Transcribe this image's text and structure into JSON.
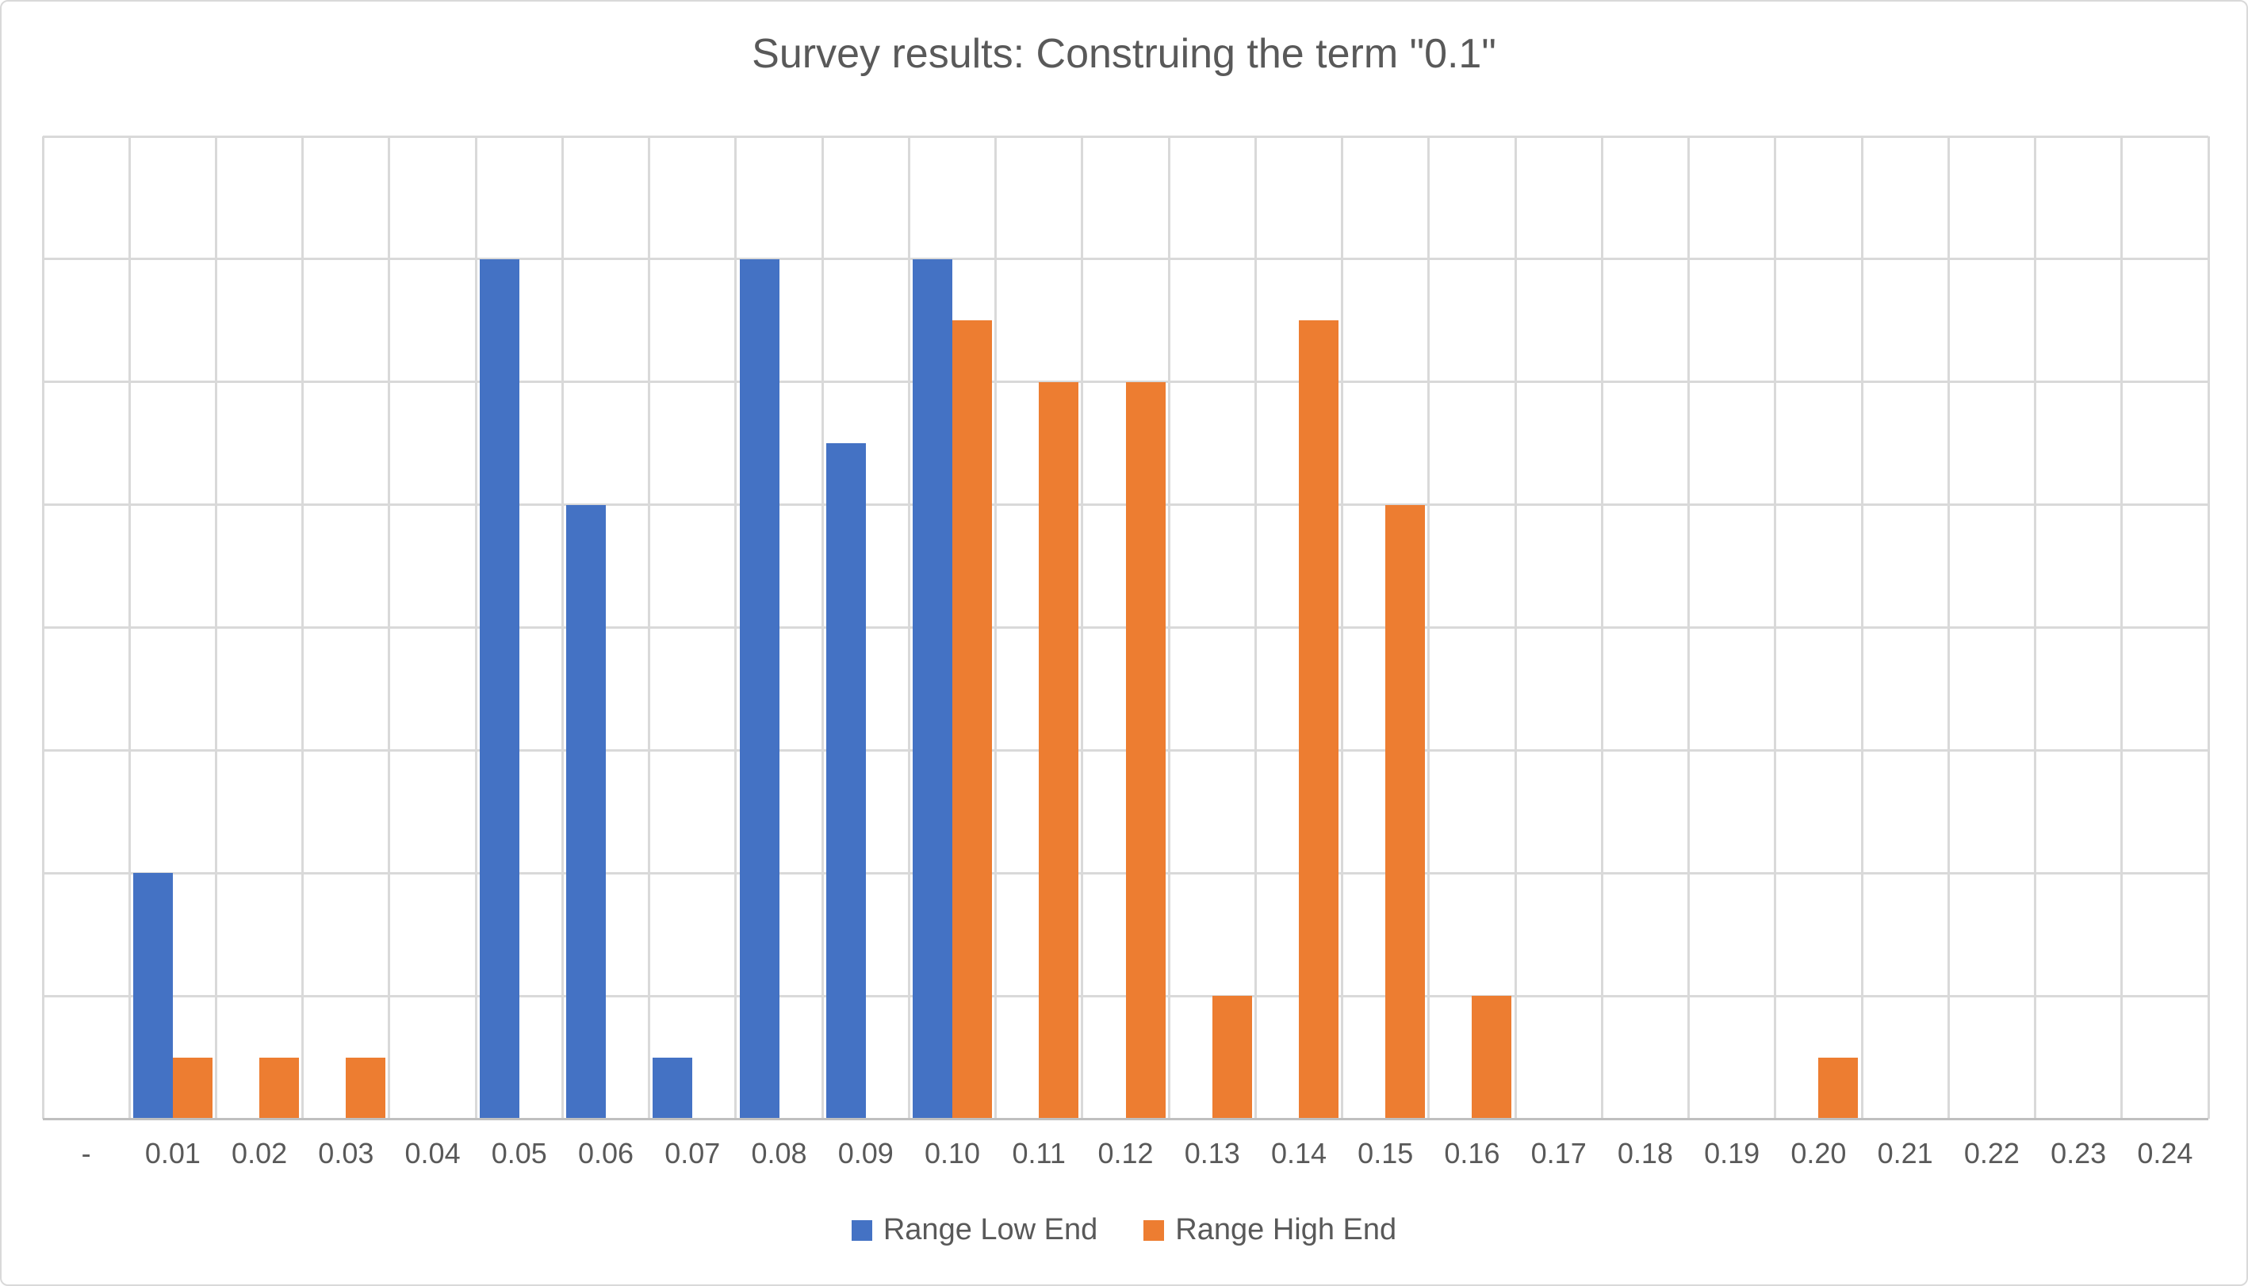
{
  "chart_data": {
    "type": "bar",
    "title": "Survey results: Construing the term \"0.1\"",
    "categories": [
      "-",
      "0.01",
      "0.02",
      "0.03",
      "0.04",
      "0.05",
      "0.06",
      "0.07",
      "0.08",
      "0.09",
      "0.10",
      "0.11",
      "0.12",
      "0.13",
      "0.14",
      "0.15",
      "0.16",
      "0.17",
      "0.18",
      "0.19",
      "0.20",
      "0.21",
      "0.22",
      "0.23",
      "0.24"
    ],
    "series": [
      {
        "name": "Range Low End",
        "color": "#4472C4",
        "values": [
          0,
          4,
          0,
          0,
          0,
          14,
          10,
          1,
          14,
          11,
          14,
          0,
          0,
          0,
          0,
          0,
          0,
          0,
          0,
          0,
          0,
          0,
          0,
          0,
          0
        ]
      },
      {
        "name": "Range High End",
        "color": "#ED7D31",
        "values": [
          0,
          1,
          1,
          1,
          0,
          0,
          0,
          0,
          0,
          0,
          13,
          12,
          12,
          2,
          13,
          10,
          2,
          0,
          0,
          0,
          1,
          0,
          0,
          0,
          0
        ]
      }
    ],
    "xlabel": "",
    "ylabel": "",
    "ylim": [
      0,
      16
    ],
    "y_gridline_step": 2,
    "y_axis_labels_visible": false,
    "grid": true,
    "legend_position": "bottom-center"
  },
  "colors": {
    "series_low": "#4472C4",
    "series_high": "#ED7D31",
    "text": "#595959",
    "gridline": "#D9D9D9",
    "axis_line": "#BFBFBF",
    "chart_border": "#D9D9D9",
    "background": "#FFFFFF"
  }
}
